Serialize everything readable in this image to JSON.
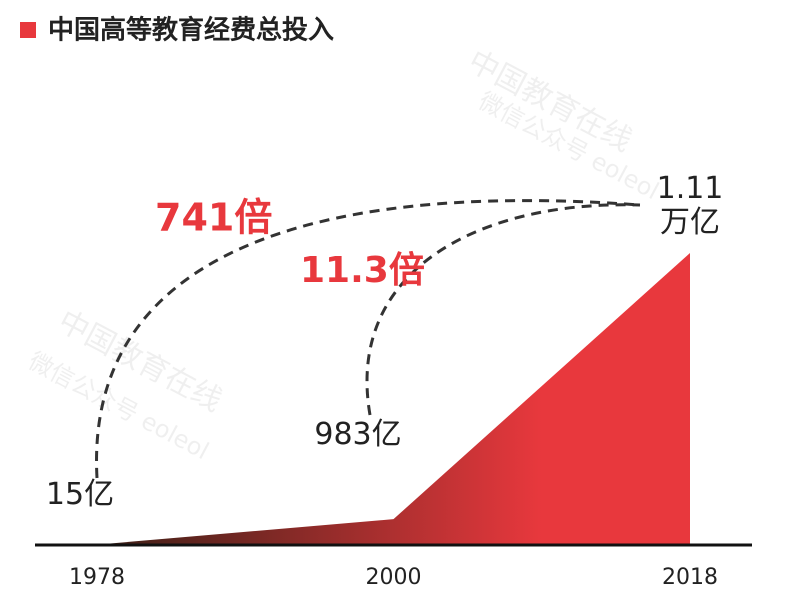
{
  "chart_data": {
    "type": "area",
    "title": "中国高等教育经费总投入",
    "categories": [
      "1978",
      "2000",
      "2018"
    ],
    "values": [
      15,
      983,
      11100
    ],
    "value_labels": [
      "15亿",
      "983亿",
      "1.11\n万亿"
    ],
    "ylim": [
      0,
      11100
    ],
    "color": "#e8383d",
    "start_color": "#3a1f16",
    "annotations": [
      "741倍",
      "11.3倍"
    ],
    "watermark": [
      "中国教育在线",
      "微信公众号 eoleol"
    ]
  }
}
